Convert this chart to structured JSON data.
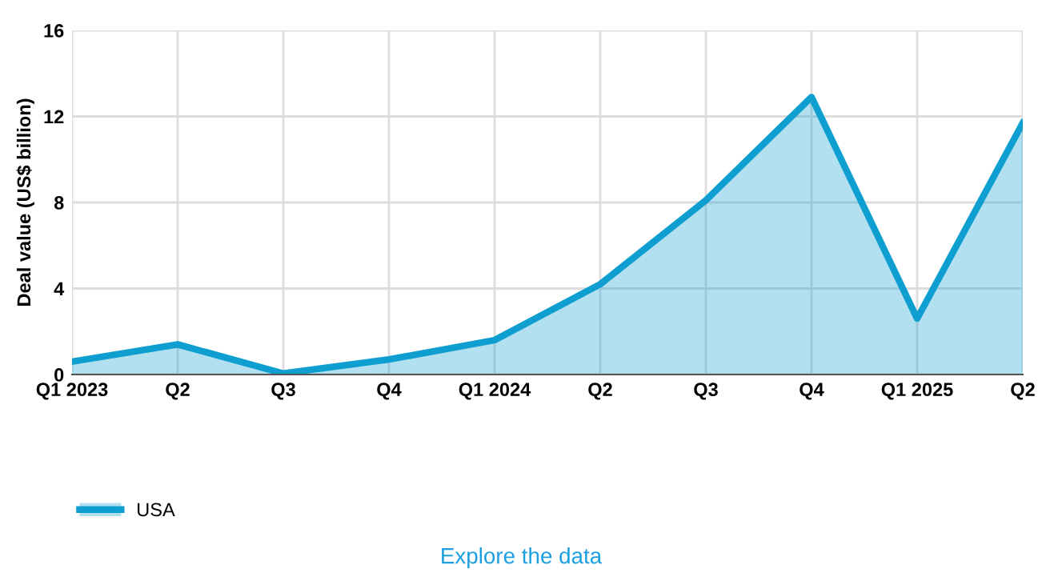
{
  "chart_data": {
    "type": "area",
    "ylabel": "Deal value (US$ billion)",
    "categories": [
      "Q1 2023",
      "Q2",
      "Q3",
      "Q4",
      "Q1 2024",
      "Q2",
      "Q3",
      "Q4",
      "Q1 2025",
      "Q2"
    ],
    "series": [
      {
        "name": "USA",
        "color": "#0e9fd0",
        "values": [
          0.6,
          1.4,
          0.05,
          0.7,
          1.6,
          4.2,
          8.1,
          12.9,
          2.6,
          11.7
        ]
      }
    ],
    "ylim": [
      0,
      16
    ],
    "yticks": [
      0,
      4,
      8,
      12,
      16
    ],
    "grid": true,
    "legend": "bottom left",
    "annotations": [
      "Explore the data"
    ]
  }
}
